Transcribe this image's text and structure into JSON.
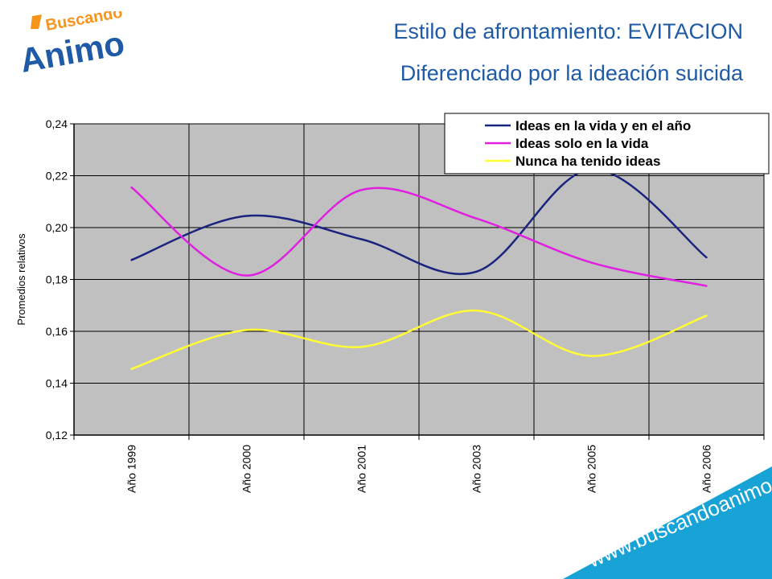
{
  "logo": {
    "text_top": "Buscando",
    "text_main": "Animo",
    "apostrophe": "'"
  },
  "slide": {
    "title": "Estilo de afrontamiento: EVITACION",
    "subtitle": "Diferenciado por la ideación suicida",
    "website": "www.buscandoanimo.org"
  },
  "colors": {
    "title": "#1f5aa6",
    "plot_bg": "#c0c0c0",
    "band": "#17a3d6",
    "logo_blue": "#1f5aa6",
    "logo_orange": "#f7941d"
  },
  "chart_data": {
    "type": "line",
    "ylabel": "Promedios relativos",
    "xlabel": "",
    "categories": [
      "Año 1999",
      "Año 2000",
      "Año 2001",
      "Año 2003",
      "Año 2005",
      "Año 2006"
    ],
    "ylim": [
      0.12,
      0.24
    ],
    "yticks": [
      "0,24",
      "0,22",
      "0,20",
      "0,18",
      "0,16",
      "0,14",
      "0,12"
    ],
    "grid": true,
    "legend_position": "top-right",
    "smooth": true,
    "series": [
      {
        "name": "Ideas en la vida y en el año",
        "color": "#1a237e",
        "values": [
          0.1875,
          0.2045,
          0.1955,
          0.183,
          0.2225,
          0.1885
        ]
      },
      {
        "name": "Ideas solo en la vida",
        "color": "#e020e0",
        "values": [
          0.2155,
          0.1815,
          0.2145,
          0.2035,
          0.1865,
          0.1775
        ]
      },
      {
        "name": "Nunca ha tenido ideas",
        "color": "#ffff33",
        "values": [
          0.1455,
          0.1605,
          0.154,
          0.168,
          0.1505,
          0.166
        ]
      }
    ]
  }
}
